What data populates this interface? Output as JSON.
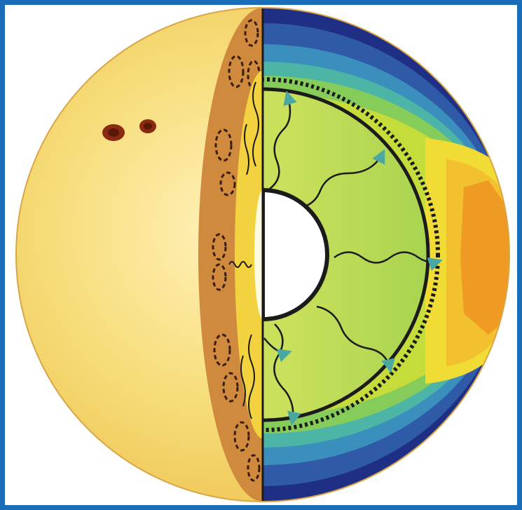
{
  "diagram": {
    "colors": {
      "frame": "#1a6db8",
      "background": "#ffffff",
      "photosphere": "#f6d860",
      "convection_zone": "#cf8a3e",
      "radiative_zone": "#f2d23e",
      "core": "#ffffff",
      "sunspot": "#8b2a12",
      "outline": "#1b1b1b"
    },
    "left_half": {
      "surface_features": [
        "sunspot",
        "sunspot"
      ],
      "cutaway_layers": [
        "photosphere",
        "convection-zone",
        "radiative-zone",
        "core"
      ]
    },
    "right_half": {
      "color_contours_outer_to_inner": [
        "#1f2f86",
        "#2f5aa8",
        "#3b8fbc",
        "#4cb5a6",
        "#86cc5a",
        "#c6dc3a",
        "#f0dc35",
        "#f3c02f",
        "#ef9a22"
      ],
      "inner_region_color": "#c9e05a",
      "boundaries": [
        "solid-circle",
        "dashed-circle"
      ],
      "energy_paths": 8
    }
  }
}
